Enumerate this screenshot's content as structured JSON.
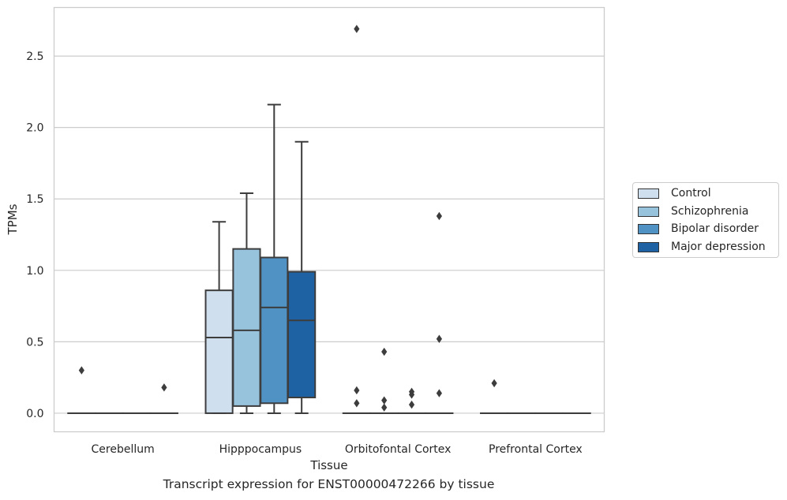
{
  "caption": "Transcript expression for ENST00000472266 by tissue",
  "chart_data": {
    "type": "box",
    "xlabel": "Tissue",
    "ylabel": "TPMs",
    "ylim": [
      -0.13,
      2.84
    ],
    "y_ticks": [
      "0.0",
      "0.5",
      "1.0",
      "1.5",
      "2.0",
      "2.5"
    ],
    "y_tick_values": [
      0,
      0.5,
      1.0,
      1.5,
      2.0,
      2.5
    ],
    "grid": "horizontal",
    "legend_placement": "outside-right",
    "categories": [
      "Cerebellum",
      "Hipppocampus",
      "Orbitofontal Cortex",
      "Prefrontal Cortex"
    ],
    "series": [
      {
        "name": "Control",
        "color": "#d0dfee",
        "boxes": [
          {
            "q1": 0,
            "median": 0,
            "q3": 0,
            "whisker_low": 0,
            "whisker_high": 0,
            "outliers": [
              0.3
            ]
          },
          {
            "q1": 0,
            "median": 0.53,
            "q3": 0.86,
            "whisker_low": 0,
            "whisker_high": 1.34,
            "outliers": []
          },
          {
            "q1": 0,
            "median": 0,
            "q3": 0,
            "whisker_low": 0,
            "whisker_high": 0,
            "outliers": [
              2.69,
              0.16,
              0.07
            ]
          },
          {
            "q1": 0,
            "median": 0,
            "q3": 0,
            "whisker_low": 0,
            "whisker_high": 0,
            "outliers": [
              0.21
            ]
          }
        ]
      },
      {
        "name": "Schizophrenia",
        "color": "#98c3dd",
        "boxes": [
          {
            "q1": 0,
            "median": 0,
            "q3": 0,
            "whisker_low": 0,
            "whisker_high": 0,
            "outliers": []
          },
          {
            "q1": 0.05,
            "median": 0.58,
            "q3": 1.15,
            "whisker_low": 0,
            "whisker_high": 1.54,
            "outliers": []
          },
          {
            "q1": 0,
            "median": 0,
            "q3": 0,
            "whisker_low": 0,
            "whisker_high": 0,
            "outliers": [
              0.43,
              0.09,
              0.04
            ]
          },
          {
            "q1": 0,
            "median": 0,
            "q3": 0,
            "whisker_low": 0,
            "whisker_high": 0,
            "outliers": []
          }
        ]
      },
      {
        "name": "Bipolar disorder",
        "color": "#4f92c3",
        "boxes": [
          {
            "q1": 0,
            "median": 0,
            "q3": 0,
            "whisker_low": 0,
            "whisker_high": 0,
            "outliers": []
          },
          {
            "q1": 0.07,
            "median": 0.74,
            "q3": 1.09,
            "whisker_low": 0,
            "whisker_high": 2.16,
            "outliers": []
          },
          {
            "q1": 0,
            "median": 0,
            "q3": 0,
            "whisker_low": 0,
            "whisker_high": 0,
            "outliers": [
              0.15,
              0.13,
              0.06
            ]
          },
          {
            "q1": 0,
            "median": 0,
            "q3": 0,
            "whisker_low": 0,
            "whisker_high": 0,
            "outliers": []
          }
        ]
      },
      {
        "name": "Major depression",
        "color": "#1f62a3",
        "boxes": [
          {
            "q1": 0,
            "median": 0,
            "q3": 0,
            "whisker_low": 0,
            "whisker_high": 0,
            "outliers": [
              0.18
            ]
          },
          {
            "q1": 0.11,
            "median": 0.65,
            "q3": 0.99,
            "whisker_low": 0,
            "whisker_high": 1.9,
            "outliers": []
          },
          {
            "q1": 0,
            "median": 0,
            "q3": 0,
            "whisker_low": 0,
            "whisker_high": 0,
            "outliers": [
              1.38,
              0.52,
              0.14
            ]
          },
          {
            "q1": 0,
            "median": 0,
            "q3": 0,
            "whisker_low": 0,
            "whisker_high": 0,
            "outliers": []
          }
        ]
      }
    ]
  }
}
